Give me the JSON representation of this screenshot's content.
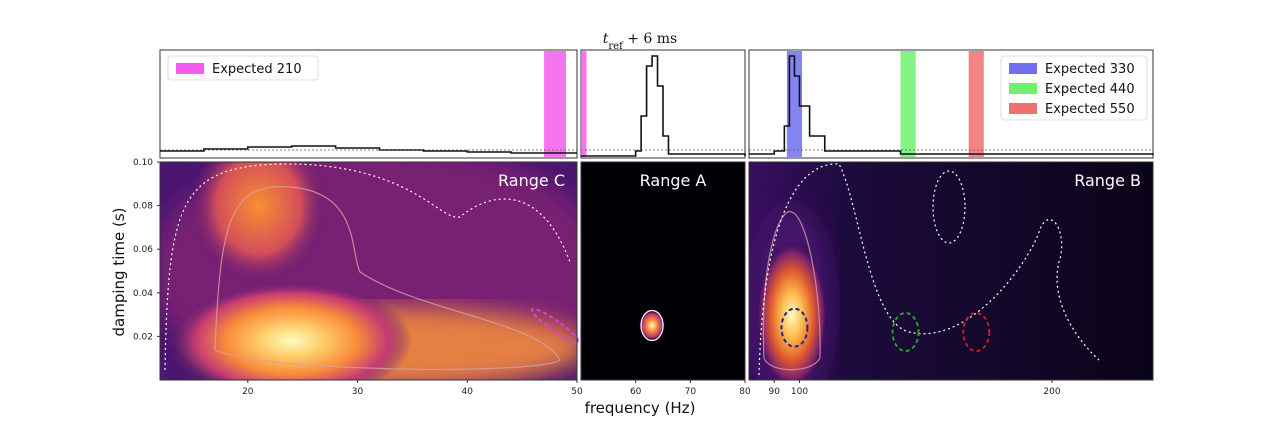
{
  "chart_data": {
    "type": "heatmap",
    "title": "t_ref + 6 ms",
    "xlabel": "frequency (Hz)",
    "ylabel": "damping time (s)",
    "ylim": [
      0,
      0.1
    ],
    "y_ticks": [
      "0.02",
      "0.04",
      "0.06",
      "0.08",
      "0.10"
    ],
    "panels": [
      {
        "name": "Range C",
        "xlim": [
          12,
          50
        ],
        "x_ticks": [
          "20",
          "30",
          "40",
          "50"
        ],
        "peaks": [
          {
            "f": 24,
            "tau": 0.018,
            "weight": 1.0
          },
          {
            "f": 21,
            "tau": 0.08,
            "weight": 0.6
          }
        ],
        "legend": [
          {
            "label": "Expected 210",
            "color": "#f55cf0"
          }
        ],
        "bands": [
          {
            "f0": 47,
            "f1": 49,
            "color": "#f55cf0"
          }
        ],
        "histogram": {
          "x": [
            12,
            16,
            20,
            24,
            28,
            32,
            36,
            40,
            44,
            48,
            50
          ],
          "y": [
            0.05,
            0.07,
            0.09,
            0.1,
            0.08,
            0.06,
            0.05,
            0.04,
            0.03,
            0.03,
            0.03
          ]
        },
        "expected_ellipses": [
          {
            "f": 48,
            "tau": 0.025,
            "color": "#e040d0"
          }
        ]
      },
      {
        "name": "Range A",
        "xlim": [
          50,
          80
        ],
        "x_ticks": [
          "60",
          "70",
          "80"
        ],
        "peaks": [
          {
            "f": 63,
            "tau": 0.025,
            "weight": 1.0
          }
        ],
        "legend": [],
        "bands": [
          {
            "f0": 50,
            "f1": 51,
            "color": "#f55cf0"
          }
        ],
        "histogram": {
          "x": [
            50,
            60,
            61,
            62,
            63,
            64,
            65,
            66,
            80
          ],
          "y": [
            0.0,
            0.05,
            0.4,
            0.9,
            1.0,
            0.7,
            0.2,
            0.02,
            0.0
          ]
        },
        "expected_ellipses": []
      },
      {
        "name": "Range B",
        "xlim": [
          80,
          240
        ],
        "x_ticks": [
          "90",
          "100",
          "200"
        ],
        "peaks": [
          {
            "f": 97,
            "tau": 0.025,
            "weight": 1.0
          }
        ],
        "legend": [
          {
            "label": "Expected 330",
            "color": "#6f6ff0"
          },
          {
            "label": "Expected 440",
            "color": "#6ff06f"
          },
          {
            "label": "Expected 550",
            "color": "#f06f6f"
          }
        ],
        "bands": [
          {
            "f0": 95,
            "f1": 101,
            "color": "#6f6ff0"
          },
          {
            "f0": 140,
            "f1": 146,
            "color": "#6ff06f"
          },
          {
            "f0": 167,
            "f1": 173,
            "color": "#f06f6f"
          }
        ],
        "histogram": {
          "x": [
            80,
            90,
            94,
            96,
            98,
            100,
            104,
            110,
            140,
            240
          ],
          "y": [
            0.02,
            0.05,
            0.3,
            1.0,
            0.8,
            0.5,
            0.2,
            0.05,
            0.02,
            0.01
          ]
        },
        "expected_ellipses": [
          {
            "f": 98,
            "tau": 0.024,
            "color": "#1a2a8a"
          },
          {
            "f": 142,
            "tau": 0.022,
            "color": "#2aa02a"
          },
          {
            "f": 170,
            "tau": 0.022,
            "color": "#c02020"
          }
        ]
      }
    ]
  }
}
